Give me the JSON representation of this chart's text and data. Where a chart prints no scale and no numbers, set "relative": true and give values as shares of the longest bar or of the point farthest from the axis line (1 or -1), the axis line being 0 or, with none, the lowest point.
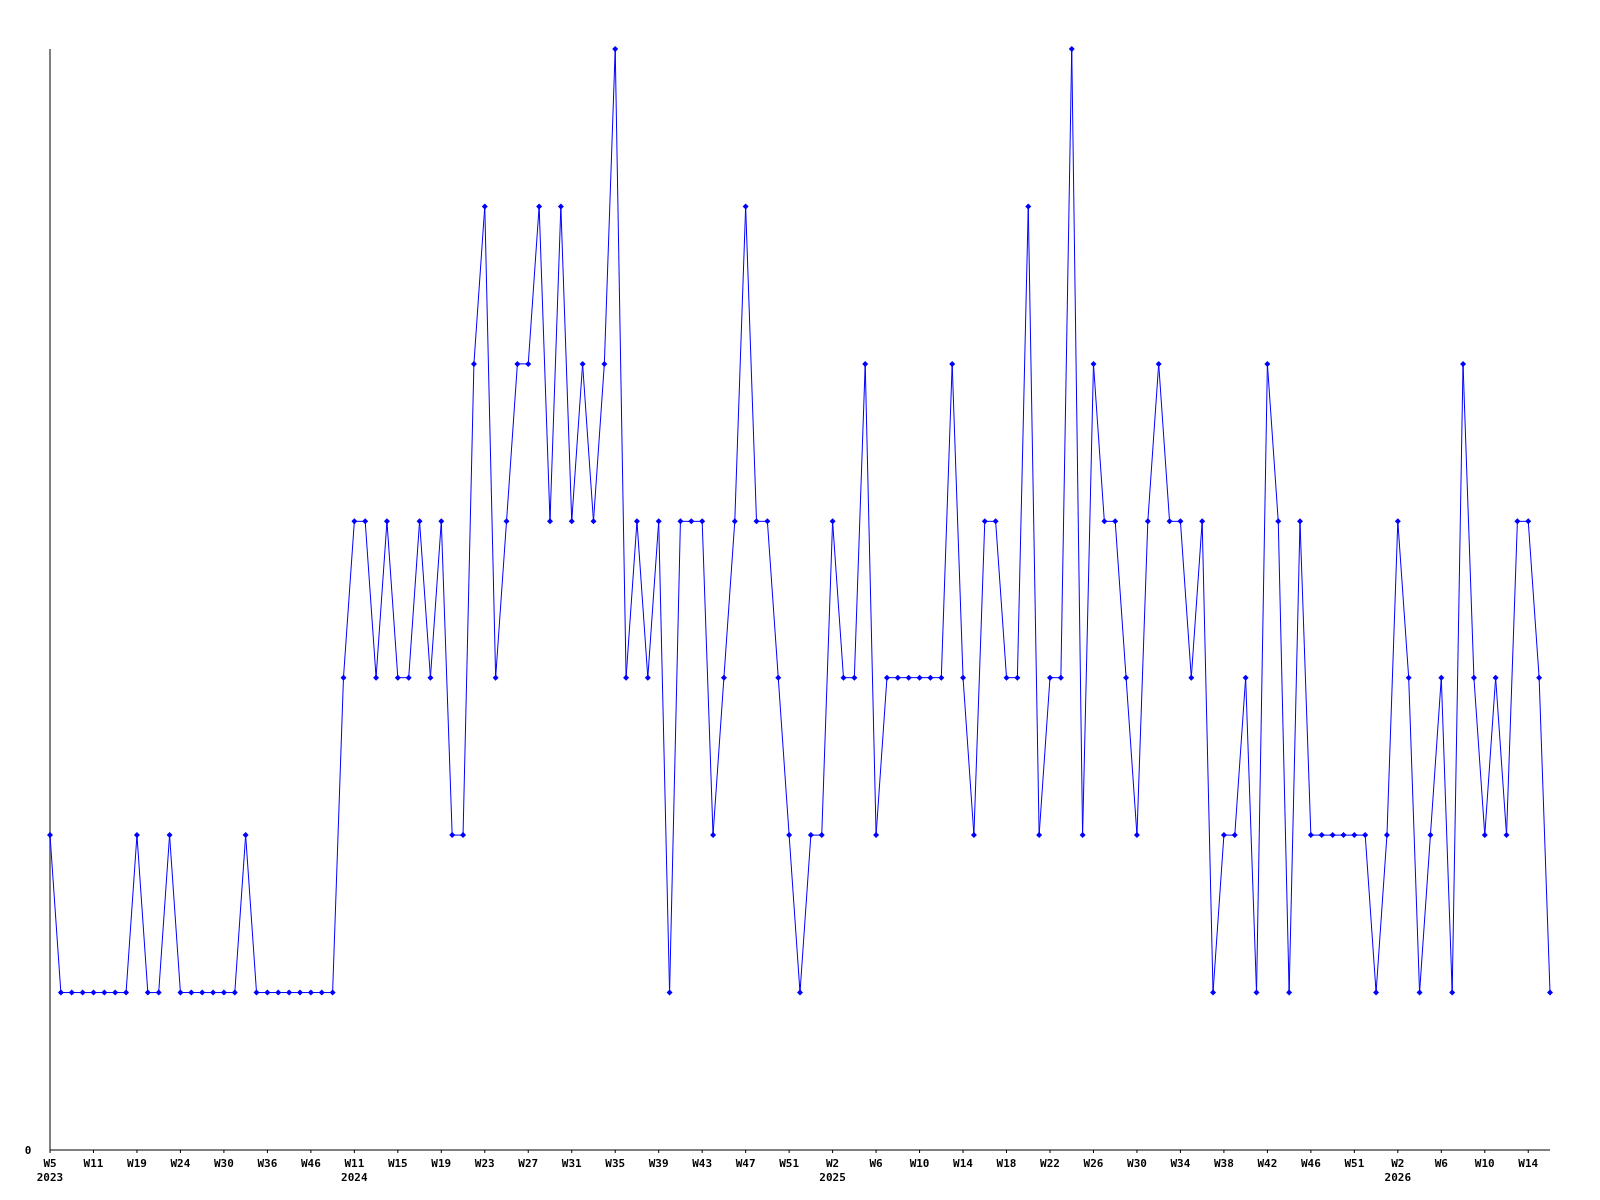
{
  "chart_data": {
    "type": "line",
    "relative": true,
    "color": "#0000ff",
    "marker": "diamond",
    "categories": [
      "W5\n2023",
      null,
      null,
      null,
      "W11",
      null,
      null,
      null,
      "W19",
      null,
      null,
      null,
      "W24",
      null,
      null,
      null,
      "W30",
      null,
      null,
      null,
      "W36",
      null,
      null,
      null,
      "W46",
      null,
      null,
      null,
      "W11\n2024",
      null,
      null,
      null,
      "W15",
      null,
      null,
      null,
      "W19",
      null,
      null,
      null,
      "W23",
      null,
      null,
      null,
      "W27",
      null,
      null,
      null,
      "W31",
      null,
      null,
      null,
      "W35",
      null,
      null,
      null,
      "W39",
      null,
      null,
      null,
      "W43",
      null,
      null,
      null,
      "W47",
      null,
      null,
      null,
      "W51",
      null,
      null,
      null,
      "W2\n2025",
      null,
      null,
      null,
      "W6",
      null,
      null,
      null,
      "W10",
      null,
      null,
      null,
      "W14",
      null,
      null,
      null,
      "W18",
      null,
      null,
      null,
      "W22",
      null,
      null,
      null,
      "W26",
      null,
      null,
      null,
      "W30",
      null,
      null,
      null,
      "W34",
      null,
      null,
      null,
      "W38",
      null,
      null,
      null,
      "W42",
      null,
      null,
      null,
      "W46",
      null,
      null,
      null,
      "W51",
      null,
      null,
      null,
      "W2\n2026",
      null,
      null,
      null,
      "W6",
      null,
      null,
      null,
      "W10",
      null,
      null,
      null,
      "W14",
      null,
      null
    ],
    "values": [
      0.286,
      0.143,
      0.143,
      0.143,
      0.143,
      0.143,
      0.143,
      0.143,
      0.286,
      0.143,
      0.143,
      0.286,
      0.143,
      0.143,
      0.143,
      0.143,
      0.143,
      0.143,
      0.286,
      0.143,
      0.143,
      0.143,
      0.143,
      0.143,
      0.143,
      0.143,
      0.143,
      0.429,
      0.571,
      0.571,
      0.429,
      0.571,
      0.429,
      0.429,
      0.571,
      0.429,
      0.571,
      0.286,
      0.286,
      0.714,
      0.857,
      0.429,
      0.571,
      0.714,
      0.714,
      0.857,
      0.571,
      0.857,
      0.571,
      0.714,
      0.571,
      0.714,
      1,
      0.429,
      0.571,
      0.429,
      0.571,
      0.143,
      0.571,
      0.571,
      0.571,
      0.286,
      0.429,
      0.571,
      0.857,
      0.571,
      0.571,
      0.429,
      0.286,
      0.143,
      0.286,
      0.286,
      0.571,
      0.429,
      0.429,
      0.714,
      0.286,
      0.429,
      0.429,
      0.429,
      0.429,
      0.429,
      0.429,
      0.714,
      0.429,
      0.286,
      0.571,
      0.571,
      0.429,
      0.429,
      0.857,
      0.286,
      0.429,
      0.429,
      1,
      0.286,
      0.714,
      0.571,
      0.571,
      0.429,
      0.286,
      0.571,
      0.714,
      0.571,
      0.571,
      0.429,
      0.571,
      0.143,
      0.286,
      0.286,
      0.429,
      0.143,
      0.714,
      0.571,
      0.143,
      0.571,
      0.286,
      0.286,
      0.286,
      0.286,
      0.286,
      0.286,
      0.143,
      0.286,
      0.571,
      0.429,
      0.143,
      0.286,
      0.429,
      0.143,
      0.714,
      0.429,
      0.286,
      0.429,
      0.286,
      0.571,
      0.571,
      0.429,
      0.143
    ],
    "annotations": [
      "0"
    ]
  }
}
